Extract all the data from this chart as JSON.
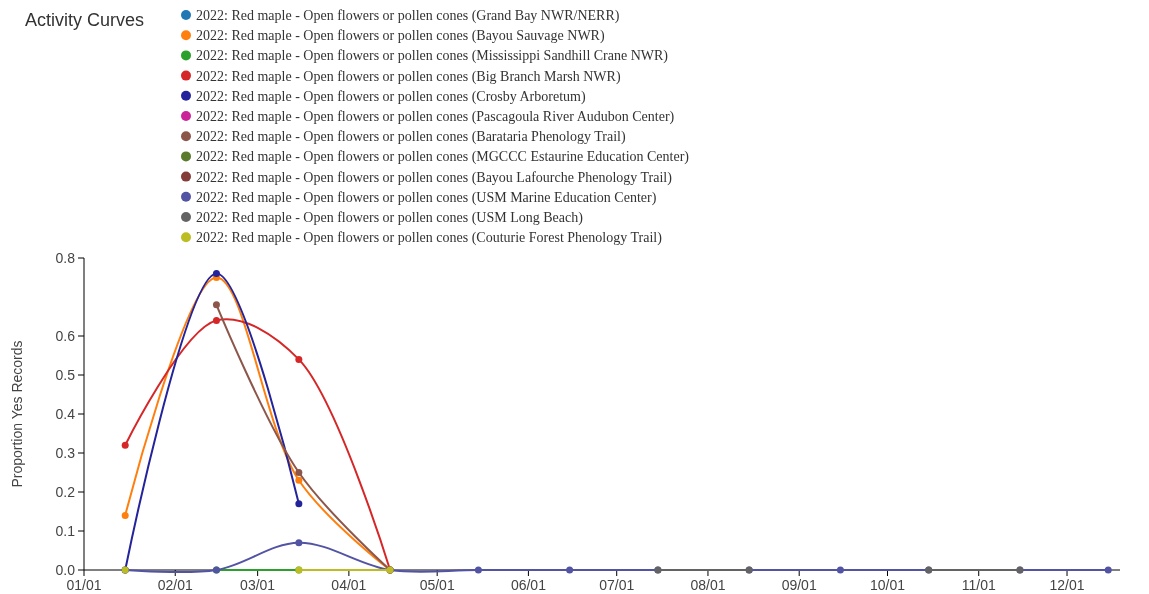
{
  "chart_data": {
    "type": "line",
    "title": "Activity Curves",
    "ylabel": "Proportion Yes Records",
    "x": [
      "2022-01-15",
      "2022-02-15",
      "2022-03-15",
      "2022-04-15",
      "2022-05-15",
      "2022-06-15",
      "2022-07-15",
      "2022-08-15",
      "2022-09-15",
      "2022-10-15",
      "2022-11-15",
      "2022-12-15"
    ],
    "xlim": [
      "2022-01-01",
      "2022-12-19"
    ],
    "xticks": [
      {
        "value": "2022-01-01",
        "label": "01/01"
      },
      {
        "value": "2022-02-01",
        "label": "02/01"
      },
      {
        "value": "2022-03-01",
        "label": "03/01"
      },
      {
        "value": "2022-04-01",
        "label": "04/01"
      },
      {
        "value": "2022-05-01",
        "label": "05/01"
      },
      {
        "value": "2022-06-01",
        "label": "06/01"
      },
      {
        "value": "2022-07-01",
        "label": "07/01"
      },
      {
        "value": "2022-08-01",
        "label": "08/01"
      },
      {
        "value": "2022-09-01",
        "label": "09/01"
      },
      {
        "value": "2022-10-01",
        "label": "10/01"
      },
      {
        "value": "2022-11-01",
        "label": "11/01"
      },
      {
        "value": "2022-12-01",
        "label": "12/01"
      }
    ],
    "ylim": [
      0,
      0.8
    ],
    "yticks": [
      {
        "value": 0,
        "label": "0.0"
      },
      0.1,
      0.2,
      0.3,
      0.4,
      0.5,
      0.6,
      0.8
    ],
    "grid": false,
    "legend": "top",
    "marker": "circle",
    "line_style": "solid",
    "series": [
      {
        "name": "2022: Red maple - Open flowers or pollen cones (Grand Bay NWR/NERR)",
        "color": "#1f77b4",
        "values": [
          null,
          null,
          null,
          null,
          null,
          null,
          null,
          null,
          null,
          null,
          null,
          null
        ]
      },
      {
        "name": "2022: Red maple - Open flowers or pollen cones (Bayou Sauvage NWR)",
        "color": "#ff7f0e",
        "values": [
          0.14,
          0.75,
          0.23,
          0,
          null,
          null,
          null,
          null,
          null,
          null,
          null,
          null
        ]
      },
      {
        "name": "2022: Red maple - Open flowers or pollen cones (Mississippi Sandhill Crane NWR)",
        "color": "#2ca02c",
        "values": [
          null,
          0,
          0,
          null,
          null,
          null,
          null,
          null,
          null,
          null,
          null,
          null
        ]
      },
      {
        "name": "2022: Red maple - Open flowers or pollen cones (Big Branch Marsh NWR)",
        "color": "#d62728",
        "values": [
          0.32,
          0.64,
          0.54,
          0,
          null,
          null,
          null,
          null,
          null,
          null,
          null,
          null
        ]
      },
      {
        "name": "2022: Red maple - Open flowers or pollen cones (Crosby Arboretum)",
        "color": "#23239b",
        "values": [
          0,
          0.76,
          0.17,
          null,
          null,
          null,
          null,
          null,
          null,
          null,
          null,
          null
        ]
      },
      {
        "name": "2022: Red maple - Open flowers or pollen cones (Pascagoula River Audubon Center)",
        "color": "#cc2299",
        "values": [
          null,
          null,
          null,
          null,
          null,
          null,
          null,
          null,
          null,
          null,
          null,
          null
        ]
      },
      {
        "name": "2022: Red maple - Open flowers or pollen cones (Barataria Phenology Trail)",
        "color": "#8c564b",
        "values": [
          null,
          0.68,
          0.25,
          0,
          null,
          null,
          null,
          null,
          null,
          null,
          null,
          null
        ]
      },
      {
        "name": "2022: Red maple - Open flowers or pollen cones (MGCCC Estaurine Education Center)",
        "color": "#5a7a2e",
        "values": [
          null,
          null,
          null,
          null,
          null,
          null,
          null,
          null,
          null,
          null,
          null,
          null
        ]
      },
      {
        "name": "2022: Red maple - Open flowers or pollen cones (Bayou Lafourche Phenology Trail)",
        "color": "#843c39",
        "values": [
          null,
          null,
          null,
          null,
          null,
          null,
          null,
          null,
          null,
          null,
          null,
          null
        ]
      },
      {
        "name": "2022: Red maple - Open flowers or pollen cones (USM Marine Education Center)",
        "color": "#5254a3",
        "values": [
          0,
          0,
          0.07,
          0,
          0,
          0,
          0,
          0,
          0,
          0,
          0,
          0
        ]
      },
      {
        "name": "2022: Red maple - Open flowers or pollen cones (USM Long Beach)",
        "color": "#636363",
        "values": [
          null,
          null,
          null,
          null,
          null,
          null,
          0,
          0,
          null,
          0,
          0,
          null
        ]
      },
      {
        "name": "2022: Red maple - Open flowers or pollen cones (Couturie Forest Phenology Trail)",
        "color": "#bcbd22",
        "values": [
          0,
          null,
          0,
          0,
          null,
          null,
          null,
          null,
          null,
          null,
          null,
          null
        ]
      }
    ]
  }
}
